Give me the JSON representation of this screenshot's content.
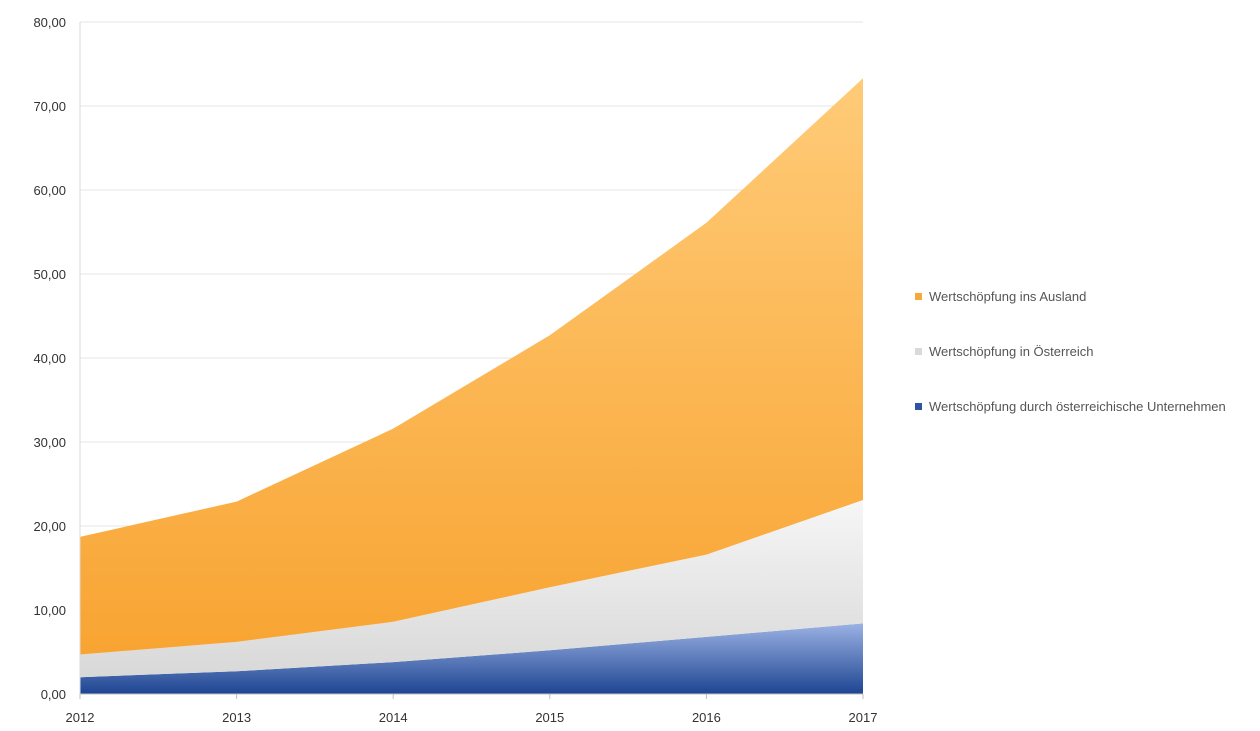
{
  "chart_data": {
    "type": "area",
    "stacked": true,
    "x": [
      "2012",
      "2013",
      "2014",
      "2015",
      "2016",
      "2017"
    ],
    "ylim": [
      0,
      80
    ],
    "yticks": [
      "0,00",
      "10,00",
      "20,00",
      "30,00",
      "40,00",
      "50,00",
      "60,00",
      "70,00",
      "80,00"
    ],
    "grid": true,
    "legend_position": "right",
    "series": [
      {
        "name": "Wertschöpfung durch österreichische Unternehmen",
        "values": [
          2.0,
          2.7,
          3.8,
          5.2,
          6.8,
          8.4
        ],
        "color": "#2E54A2"
      },
      {
        "name": "Wertschöpfung in Österreich",
        "values": [
          2.7,
          3.5,
          4.8,
          7.5,
          9.8,
          14.7
        ],
        "color": "#D9D9D9"
      },
      {
        "name": "Wertschöpfung ins Ausland",
        "values": [
          14.0,
          16.7,
          23.0,
          30.0,
          39.5,
          50.2
        ],
        "color": "#F8A739"
      }
    ]
  }
}
